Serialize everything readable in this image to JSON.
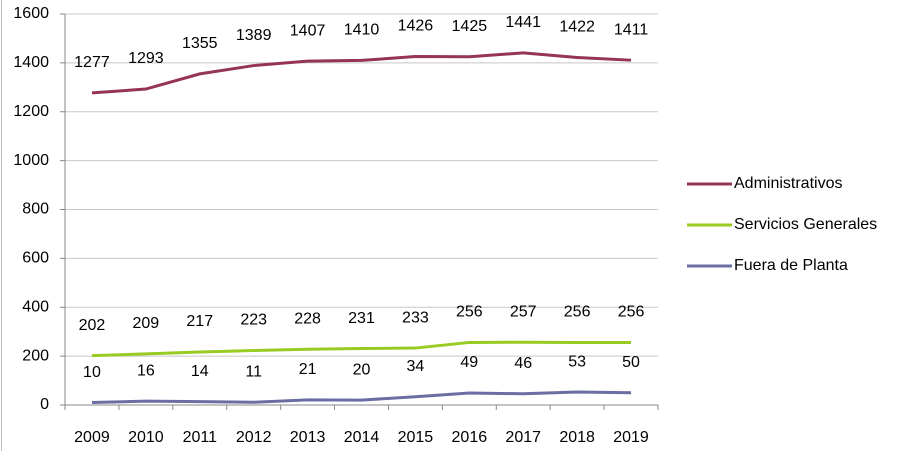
{
  "chart_data": {
    "type": "line",
    "categories": [
      "2009",
      "2010",
      "2011",
      "2012",
      "2013",
      "2014",
      "2015",
      "2016",
      "2017",
      "2018",
      "2019"
    ],
    "series": [
      {
        "name": "Administrativos",
        "color": "#953553",
        "values": [
          1277,
          1293,
          1355,
          1389,
          1407,
          1410,
          1426,
          1425,
          1441,
          1422,
          1411
        ]
      },
      {
        "name": "Servicios Generales",
        "color": "#99cc22",
        "values": [
          202,
          209,
          217,
          223,
          228,
          231,
          233,
          256,
          257,
          256,
          256
        ]
      },
      {
        "name": "Fuera de Planta",
        "color": "#6b6ea3",
        "values": [
          10,
          16,
          14,
          11,
          21,
          20,
          34,
          49,
          46,
          53,
          50
        ]
      }
    ],
    "ylim": [
      0,
      1600
    ],
    "yticks": [
      0,
      200,
      400,
      600,
      800,
      1000,
      1200,
      1400,
      1600
    ],
    "grid": true,
    "legend": "right"
  }
}
